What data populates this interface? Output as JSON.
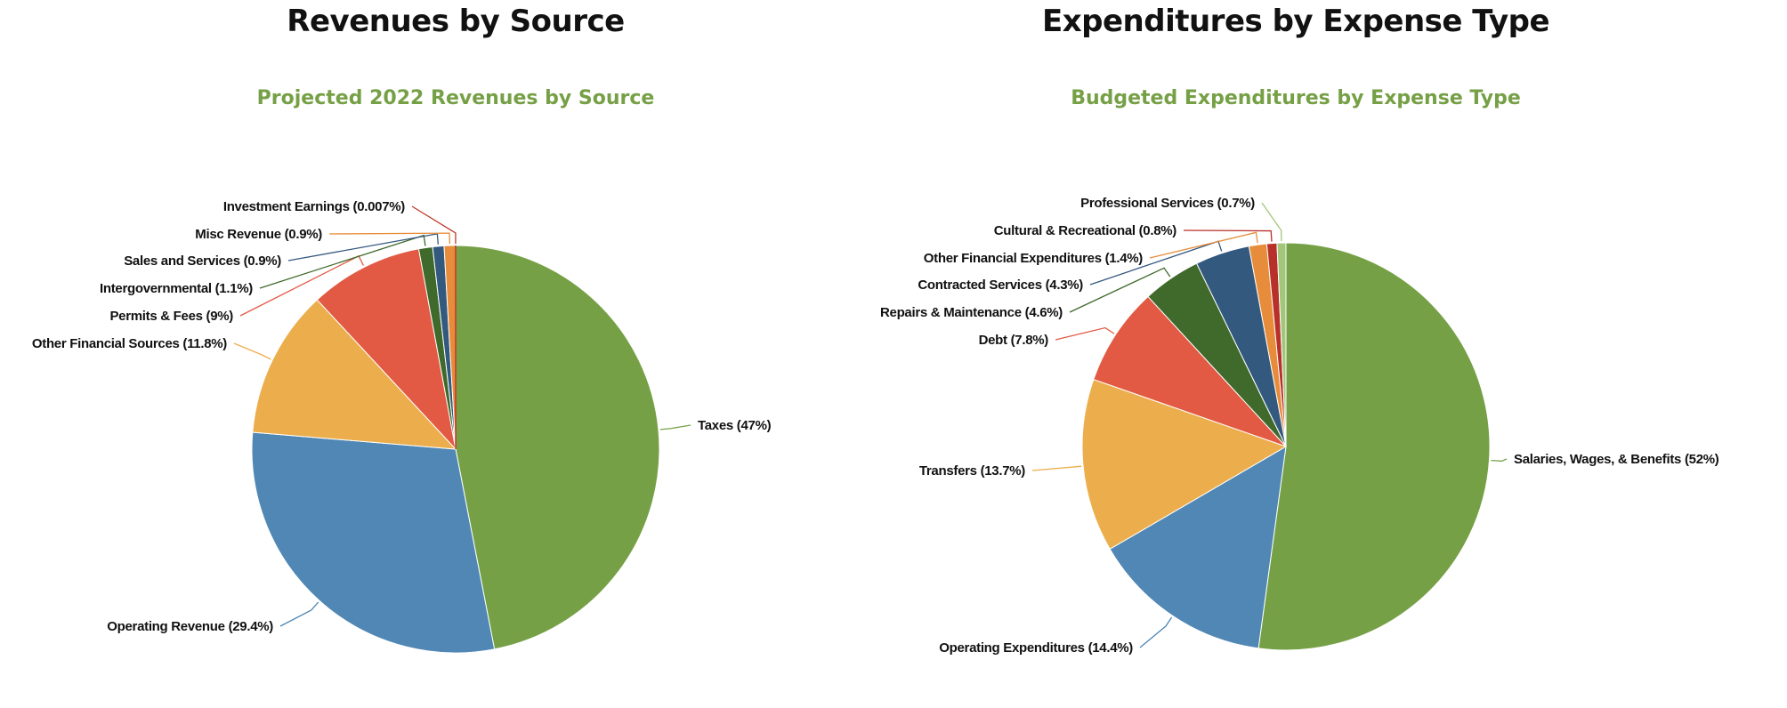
{
  "chart_data": [
    {
      "type": "pie",
      "heading": "Revenues by Source",
      "title": "Projected 2022 Revenues by Source",
      "slices": [
        {
          "label": "Taxes (47%)",
          "value": 47,
          "color": "#76a046"
        },
        {
          "label": "Operating Revenue (29.4%)",
          "value": 29.4,
          "color": "#5087b4"
        },
        {
          "label": "Other Financial Sources (11.8%)",
          "value": 11.8,
          "color": "#ecae4d"
        },
        {
          "label": "Permits & Fees (9%)",
          "value": 9,
          "color": "#e25a43"
        },
        {
          "label": "Intergovernmental (1.1%)",
          "value": 1.1,
          "color": "#3f6a2c"
        },
        {
          "label": "Sales and Services (0.9%)",
          "value": 0.9,
          "color": "#34597f"
        },
        {
          "label": "Misc Revenue (0.9%)",
          "value": 0.9,
          "color": "#e78c3a"
        },
        {
          "label": "Investment Earnings (0.007%)",
          "value": 0.007,
          "color": "#c0392b"
        }
      ]
    },
    {
      "type": "pie",
      "heading": "Expenditures by Expense Type",
      "title": "Budgeted Expenditures by Expense Type",
      "slices": [
        {
          "label": "Salaries, Wages, & Benefits (52%)",
          "value": 52,
          "color": "#76a046"
        },
        {
          "label": "Operating Expenditures (14.4%)",
          "value": 14.4,
          "color": "#5087b4"
        },
        {
          "label": "Transfers (13.7%)",
          "value": 13.7,
          "color": "#ecae4d"
        },
        {
          "label": "Debt (7.8%)",
          "value": 7.8,
          "color": "#e25a43"
        },
        {
          "label": "Repairs & Maintenance (4.6%)",
          "value": 4.6,
          "color": "#3f6a2c"
        },
        {
          "label": "Contracted Services (4.3%)",
          "value": 4.3,
          "color": "#34597f"
        },
        {
          "label": "Other Financial Expenditures (1.4%)",
          "value": 1.4,
          "color": "#e78c3a"
        },
        {
          "label": "Cultural & Recreational (0.8%)",
          "value": 0.8,
          "color": "#b8302a"
        },
        {
          "label": "Professional Services (0.7%)",
          "value": 0.7,
          "color": "#a3c77a"
        }
      ]
    }
  ]
}
